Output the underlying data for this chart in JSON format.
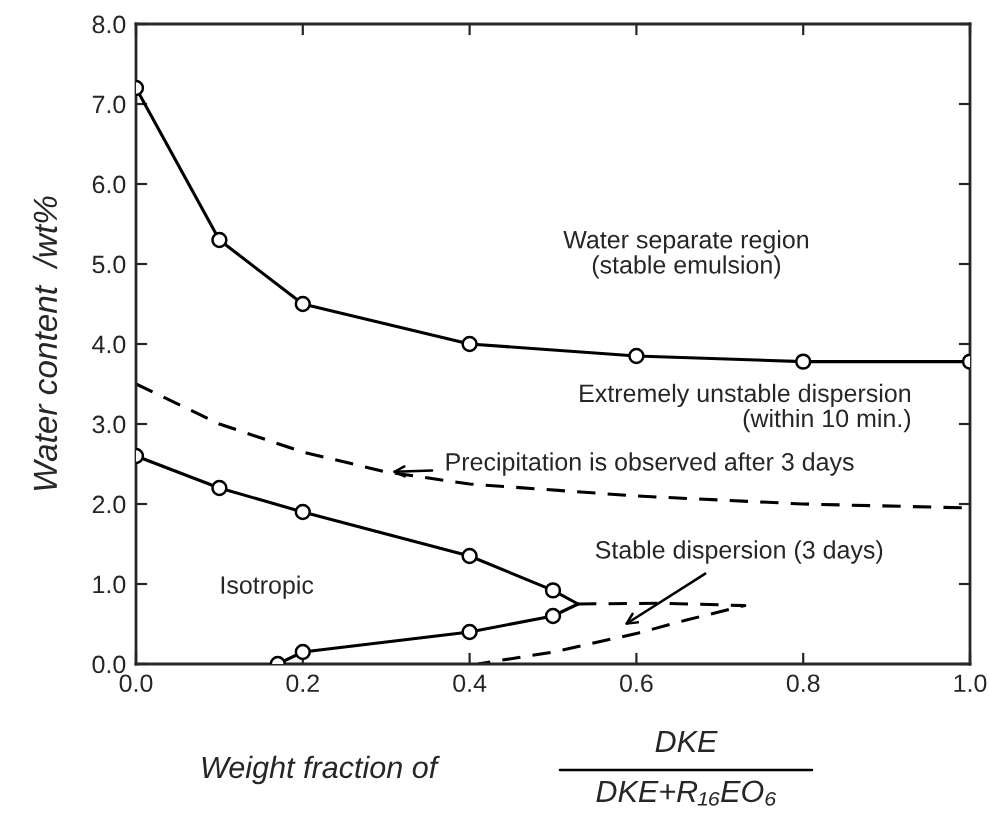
{
  "chart_data": {
    "type": "line",
    "xlabel": "Weight fraction of",
    "ylabel": "Water content  /wt%",
    "xlim": [
      0,
      1.0
    ],
    "ylim": [
      0,
      8.0
    ],
    "xticks": [
      {
        "value": 0,
        "label": "0.0"
      },
      {
        "value": 0.2,
        "label": "0.2"
      },
      {
        "value": 0.4,
        "label": "0.4"
      },
      {
        "value": 0.6,
        "label": "0.6"
      },
      {
        "value": 0.8,
        "label": "0.8"
      },
      {
        "value": 1.0,
        "label": "1.0"
      }
    ],
    "yticks": [
      {
        "value": 0,
        "label": "0.0"
      },
      {
        "value": 1,
        "label": "1.0"
      },
      {
        "value": 2,
        "label": "2.0"
      },
      {
        "value": 3,
        "label": "3.0"
      },
      {
        "value": 4,
        "label": "4.0"
      },
      {
        "value": 5,
        "label": "5.0"
      },
      {
        "value": 6,
        "label": "6.0"
      },
      {
        "value": 7,
        "label": "7.0"
      },
      {
        "value": 8,
        "label": "8.0"
      }
    ],
    "grid": false,
    "series": [
      {
        "color": "#000000",
        "marker": "circle",
        "line_style": "solid",
        "x": [
          0,
          0.1,
          0.2,
          0.4,
          0.6,
          0.8,
          1.0
        ],
        "values": [
          7.2,
          5.3,
          4.5,
          4.0,
          3.85,
          3.78,
          3.78
        ]
      },
      {
        "color": "#000000",
        "marker": "none",
        "line_style": "dashed",
        "x": [
          0,
          0.1,
          0.2,
          0.3,
          0.4,
          0.6,
          0.8,
          1.0
        ],
        "values": [
          3.5,
          3.0,
          2.65,
          2.4,
          2.25,
          2.1,
          2.0,
          1.95
        ]
      },
      {
        "color": "#000000",
        "marker": "circle",
        "line_style": "solid",
        "x": [
          0,
          0.1,
          0.2,
          0.4,
          0.5
        ],
        "values": [
          2.6,
          2.2,
          1.9,
          1.35,
          0.92
        ]
      },
      {
        "color": "#000000",
        "marker": "circle",
        "line_style": "solid",
        "x": [
          0.17,
          0.2,
          0.4,
          0.5
        ],
        "values": [
          0.0,
          0.15,
          0.4,
          0.6
        ]
      },
      {
        "color": "#000000",
        "marker": "none",
        "line_style": "solid",
        "x": [
          0.5,
          0.53,
          0.5
        ],
        "values": [
          0.92,
          0.75,
          0.6
        ]
      },
      {
        "color": "#000000",
        "marker": "none",
        "line_style": "dashed",
        "x": [
          0.53,
          0.63,
          0.73,
          0.66,
          0.6,
          0.5,
          0.41
        ],
        "values": [
          0.75,
          0.76,
          0.73,
          0.55,
          0.38,
          0.15,
          0.0
        ]
      }
    ],
    "annotations": [
      "Water separate region\n(stable emulsion)",
      "Extremely unstable dispersion\n(within 10 min.)",
      {
        "text": "Precipitation is observed after 3 days",
        "x": 0.3,
        "y": 2.4
      },
      "Isotropic",
      {
        "text": "Stable dispersion (3 days)",
        "x": 0.58,
        "y": 0.45
      },
      "DKE",
      "DKE+R₁₆EO₆"
    ]
  }
}
